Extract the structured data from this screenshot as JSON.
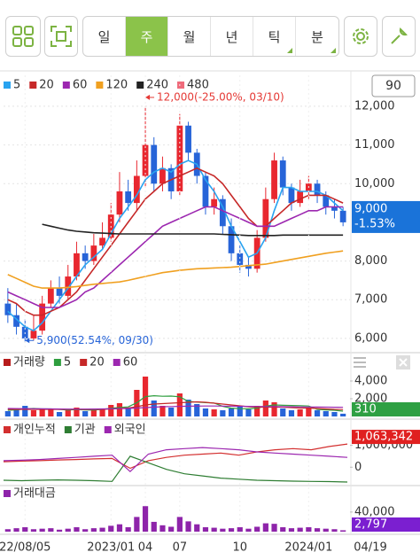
{
  "toolbar": {
    "tabs": [
      "일",
      "주",
      "월",
      "년",
      "틱",
      "분"
    ],
    "selected": 1
  },
  "zoom": "90",
  "chart_data": [
    {
      "type": "candlestick",
      "categories": [
        null,
        null,
        "22/08/05",
        null,
        null,
        null,
        null,
        null,
        null,
        null,
        null,
        null,
        "2023/01",
        null,
        null,
        null,
        "04",
        null,
        null,
        null,
        "07",
        null,
        null,
        null,
        null,
        null,
        null,
        "10",
        null,
        null,
        null,
        null,
        null,
        null,
        null,
        "2024/01",
        null,
        null,
        null,
        null
      ],
      "open": [
        6900,
        6600,
        6300,
        6000,
        6200,
        6900,
        7300,
        7100,
        7600,
        8200,
        8000,
        8400,
        8600,
        9200,
        9800,
        9500,
        10200,
        11000,
        10000,
        10400,
        9800,
        11500,
        10800,
        10200,
        9400,
        9600,
        8900,
        8200,
        7900,
        7800,
        8600,
        9600,
        10600,
        9900,
        9500,
        9800,
        10000,
        9700,
        9400,
        9300
      ],
      "high": [
        7300,
        6900,
        6500,
        6600,
        7100,
        7500,
        7600,
        7900,
        8500,
        8400,
        8700,
        9000,
        9500,
        10300,
        10100,
        10600,
        12000,
        11200,
        10700,
        10500,
        11800,
        11600,
        10900,
        10300,
        9900,
        9700,
        9100,
        8400,
        8100,
        8800,
        9900,
        10800,
        10700,
        10000,
        10100,
        10200,
        10100,
        9800,
        9600,
        9400
      ],
      "low": [
        6400,
        6100,
        5900,
        5950,
        6100,
        6800,
        6900,
        7000,
        7500,
        7800,
        7900,
        8300,
        8500,
        9000,
        9300,
        9300,
        9900,
        9800,
        9800,
        9600,
        9700,
        10600,
        10000,
        9200,
        9200,
        8700,
        8000,
        7700,
        7600,
        7700,
        8500,
        9500,
        9700,
        9300,
        9400,
        9600,
        9500,
        9200,
        9100,
        8900
      ],
      "close": [
        6600,
        6300,
        6000,
        6200,
        6900,
        7300,
        7100,
        7600,
        8200,
        8000,
        8400,
        8600,
        9200,
        9800,
        9500,
        10200,
        11000,
        10000,
        10400,
        9800,
        11500,
        10800,
        10200,
        9400,
        9600,
        8900,
        8200,
        7900,
        7800,
        8600,
        9600,
        10600,
        9900,
        9500,
        9800,
        10000,
        9700,
        9400,
        9300,
        9000
      ],
      "up_color": "#e8272f",
      "down_color": "#2764d8",
      "ylim": [
        5700,
        12800
      ],
      "yticks": [
        {
          "value": 6000,
          "label": "6,000"
        },
        {
          "value": 7000,
          "label": "7,000"
        },
        {
          "value": 8000,
          "label": "8,000"
        },
        {
          "value": 10000,
          "label": "10,000"
        },
        {
          "value": 11000,
          "label": "11,000"
        },
        {
          "value": 12000,
          "label": "12,000"
        }
      ],
      "grid": true,
      "series": [
        {
          "name": "5",
          "color": "#29a3f0",
          "values": [
            6700,
            6500,
            6300,
            6200,
            6400,
            6700,
            7000,
            7300,
            7600,
            7900,
            8100,
            8300,
            8700,
            9100,
            9400,
            9700,
            10100,
            10300,
            10400,
            10300,
            10500,
            10600,
            10500,
            10100,
            9800,
            9400,
            8900,
            8500,
            8100,
            8200,
            8600,
            9300,
            9900,
            9900,
            9800,
            9800,
            9800,
            9700,
            9500,
            9300
          ]
        },
        {
          "name": "20",
          "color": "#c62828",
          "values": [
            7000,
            6900,
            6700,
            6600,
            6600,
            6700,
            6800,
            7000,
            7200,
            7500,
            7800,
            8100,
            8400,
            8700,
            9000,
            9300,
            9600,
            9800,
            10000,
            10100,
            10200,
            10300,
            10400,
            10300,
            10200,
            10000,
            9700,
            9400,
            9100,
            8900,
            8900,
            9100,
            9300,
            9500,
            9600,
            9700,
            9700,
            9700,
            9600,
            9500
          ]
        },
        {
          "name": "60",
          "color": "#9c27b0",
          "values": [
            7200,
            7100,
            7000,
            6900,
            6800,
            6800,
            6800,
            6900,
            7000,
            7200,
            7300,
            7500,
            7700,
            7900,
            8100,
            8300,
            8500,
            8700,
            8900,
            9000,
            9100,
            9200,
            9300,
            9400,
            9400,
            9300,
            9200,
            9100,
            9000,
            8900,
            8900,
            8900,
            9000,
            9100,
            9200,
            9300,
            9300,
            9400,
            9400,
            9400
          ]
        },
        {
          "name": "120",
          "color": "#f0a020",
          "values": [
            7650,
            7550,
            7450,
            7350,
            7300,
            7300,
            7300,
            7320,
            7340,
            7370,
            7400,
            7420,
            7440,
            7460,
            7500,
            7550,
            7600,
            7650,
            7700,
            7730,
            7760,
            7780,
            7800,
            7810,
            7820,
            7830,
            7840,
            7860,
            7880,
            7900,
            7920,
            7960,
            8000,
            8040,
            8080,
            8120,
            8160,
            8200,
            8230,
            8260
          ]
        },
        {
          "name": "240",
          "color": "#222222",
          "values": [
            null,
            null,
            null,
            null,
            8950,
            8900,
            8850,
            8800,
            8770,
            8750,
            8730,
            8720,
            8710,
            8700,
            8700,
            8700,
            8700,
            8700,
            8700,
            8700,
            8700,
            8700,
            8700,
            8700,
            8700,
            8690,
            8680,
            8670,
            8660,
            8660,
            8660,
            8660,
            8670,
            8670,
            8670,
            8670,
            8670,
            8670,
            8670,
            8670
          ]
        },
        {
          "name": "480",
          "color": "#ef6a7a",
          "values": [
            null,
            null,
            null,
            null,
            null,
            null,
            null,
            null,
            null,
            null,
            null,
            null,
            null,
            null,
            null,
            null,
            null,
            null,
            null,
            null,
            null,
            null,
            null,
            null,
            null,
            null,
            null,
            null,
            null,
            null,
            null,
            null,
            null,
            null,
            null,
            null,
            null,
            null,
            null,
            null
          ]
        }
      ],
      "annotations": [
        {
          "text": "12,000(-25.00%, 03/10)",
          "index": 16,
          "value": 12000,
          "color": "#e53935"
        },
        {
          "text": "5,900(52.54%, 09/30)",
          "index": 2,
          "value": 5900,
          "color": "#2764d8"
        }
      ],
      "current": {
        "value": 9000,
        "label": "9,000",
        "change": "-1.53%",
        "color": "#1a73d9"
      },
      "last_date": "04/19"
    },
    {
      "type": "bar",
      "name": "거래량",
      "color": "#b71c1c",
      "values": [
        600,
        900,
        1200,
        700,
        800,
        900,
        500,
        700,
        1000,
        600,
        800,
        900,
        1300,
        1500,
        900,
        3000,
        4500,
        1800,
        1200,
        1000,
        2600,
        1900,
        1400,
        900,
        800,
        700,
        900,
        1100,
        800,
        1200,
        1800,
        1600,
        900,
        700,
        800,
        900,
        700,
        600,
        500,
        310
      ],
      "ylim": [
        0,
        6500
      ],
      "yticks": [
        {
          "value": 2000,
          "label": "2,000"
        },
        {
          "value": 4000,
          "label": "4,000"
        }
      ],
      "current_color": "#2ea043",
      "series": [
        {
          "name": "5",
          "color": "#2e9e3e",
          "values": [
            700,
            750,
            850,
            900,
            850,
            850,
            800,
            720,
            780,
            740,
            720,
            800,
            920,
            1020,
            1080,
            1540,
            2240,
            2340,
            2280,
            2300,
            2220,
            1700,
            1620,
            1560,
            1520,
            1140,
            940,
            880,
            860,
            940,
            1160,
            1300,
            1260,
            1240,
            1220,
            1180,
            800,
            740,
            700,
            600
          ]
        },
        {
          "name": "20",
          "color": "#c62828",
          "values": [
            800,
            800,
            800,
            800,
            800,
            800,
            800,
            800,
            800,
            800,
            800,
            800,
            850,
            900,
            950,
            1100,
            1300,
            1400,
            1450,
            1500,
            1550,
            1600,
            1650,
            1600,
            1500,
            1400,
            1300,
            1200,
            1100,
            1050,
            1050,
            1050,
            1050,
            1000,
            950,
            950,
            900,
            850,
            800,
            780
          ]
        },
        {
          "name": "60",
          "color": "#9c27b0",
          "values": [
            900,
            890,
            880,
            870,
            860,
            850,
            840,
            830,
            830,
            830,
            840,
            850,
            860,
            880,
            900,
            950,
            1000,
            1050,
            1100,
            1120,
            1140,
            1160,
            1170,
            1180,
            1180,
            1170,
            1160,
            1150,
            1140,
            1130,
            1120,
            1110,
            1100,
            1090,
            1080,
            1070,
            1060,
            1050,
            1040,
            1030
          ]
        }
      ]
    },
    {
      "type": "line",
      "ylim": [
        -720000,
        2000000
      ],
      "yticks": [
        0,
        {
          "value": 1000000,
          "label": "1,000,000"
        }
      ],
      "current_label": "1,063,342",
      "current_color": "#e02020",
      "series": [
        {
          "name": "개인누적",
          "color": "#d32f2f",
          "values": [
            250000,
            280000,
            300000,
            330000,
            350000,
            380000,
            400000,
            -50000,
            300000,
            450000,
            550000,
            600000,
            650000,
            550000,
            700000,
            800000,
            850000,
            800000,
            950000,
            1063342
          ]
        },
        {
          "name": "기관",
          "color": "#2e7d32",
          "values": [
            -600000,
            -620000,
            -600000,
            -580000,
            -600000,
            -620000,
            -650000,
            500000,
            200000,
            -100000,
            -300000,
            -400000,
            -500000,
            -550000,
            -600000,
            -620000,
            -640000,
            -650000,
            -660000,
            -680000
          ]
        },
        {
          "name": "외국인",
          "color": "#9c27b0",
          "values": [
            300000,
            320000,
            350000,
            400000,
            450000,
            500000,
            550000,
            -200000,
            600000,
            800000,
            850000,
            900000,
            850000,
            800000,
            700000,
            650000,
            600000,
            550000,
            500000,
            450000
          ]
        }
      ]
    },
    {
      "type": "bar",
      "name": "거래대금",
      "color": "#8e24aa",
      "values": [
        5000,
        7000,
        9000,
        5000,
        6000,
        7000,
        4000,
        6000,
        9000,
        5000,
        7000,
        8000,
        12000,
        15000,
        9000,
        30000,
        52000,
        20000,
        13000,
        10000,
        30000,
        21000,
        15000,
        9000,
        8000,
        6000,
        7000,
        9000,
        6000,
        10000,
        17000,
        16000,
        9000,
        7000,
        8000,
        9000,
        7000,
        6000,
        5000,
        2797
      ],
      "ylim": [
        0,
        85000
      ],
      "yticks": [
        {
          "value": 40000,
          "label": "40,000"
        }
      ],
      "current_label": "2,797",
      "current_color": "#7b1fd0"
    }
  ]
}
